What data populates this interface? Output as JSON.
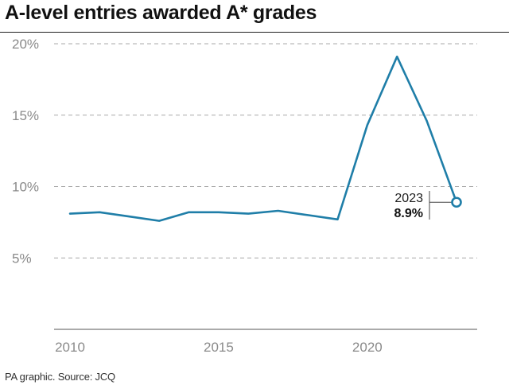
{
  "chart_data": {
    "type": "line",
    "title": "A-level entries awarded A* grades",
    "xlabel": "",
    "ylabel": "",
    "x": [
      2010,
      2011,
      2012,
      2013,
      2014,
      2015,
      2016,
      2017,
      2018,
      2019,
      2020,
      2021,
      2022,
      2023
    ],
    "series": [
      {
        "values": [
          8.1,
          8.2,
          7.9,
          7.6,
          8.2,
          8.2,
          8.1,
          8.3,
          8.0,
          7.7,
          14.3,
          19.1,
          14.6,
          8.9
        ]
      }
    ],
    "xlim": [
      2010,
      2023
    ],
    "ylim": [
      0,
      20
    ],
    "xticks": [
      2010,
      2015,
      2020
    ],
    "xtick_labels": [
      "2010",
      "2015",
      "2020"
    ],
    "yticks": [
      5,
      10,
      15,
      20
    ],
    "ytick_labels": [
      "5%",
      "10%",
      "15%",
      "20%"
    ],
    "grid": "horizontal dashed",
    "legend": "none",
    "color": "#1f7ea8",
    "annotation": {
      "x": 2023,
      "year_label": "2023",
      "value_label": "8.9%"
    }
  },
  "footer": "PA graphic. Source: JCQ"
}
